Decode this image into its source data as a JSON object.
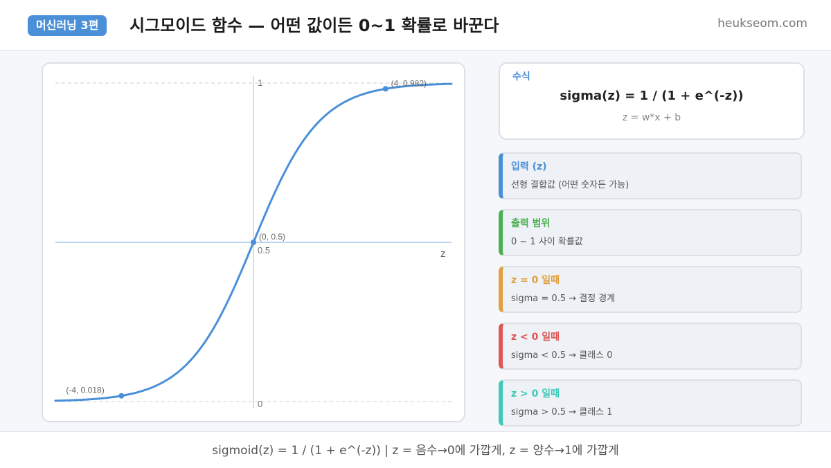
{
  "header": {
    "badge": "머신러닝 3편",
    "title": "시그모이드 함수 — 어떤 값이든 0~1 확률로 바꾼다",
    "site": "heukseom.com"
  },
  "chart_data": {
    "type": "line",
    "function": "sigmoid",
    "xlim": [
      -6,
      6
    ],
    "ylim": [
      0,
      1
    ],
    "xlabel": "z",
    "ytick_top": "1",
    "ytick_bottom": "0",
    "y_mid_label": "0.5",
    "points": [
      {
        "x": -4,
        "y": 0.018,
        "label": "(-4, 0.018)"
      },
      {
        "x": 0,
        "y": 0.5,
        "label": "(0, 0.5)"
      },
      {
        "x": 4,
        "y": 0.982,
        "label": "(4, 0.982)"
      }
    ],
    "colors": {
      "curve": "#4a90d9",
      "axis": "#bbbbbb",
      "dash": "#cccccc"
    }
  },
  "formula": {
    "label": "수식",
    "main": "sigma(z) = 1 / (1 + e^(-z))",
    "sub": "z = w*x + b"
  },
  "cards": [
    {
      "title": "입력 (z)",
      "desc": "선형 결합값 (어떤 숫자든 가능)",
      "color": "#4a90d9"
    },
    {
      "title": "출력 범위",
      "desc": "0 ~ 1 사이 확률값",
      "color": "#4caf50"
    },
    {
      "title": "z = 0 일때",
      "desc": "sigma = 0.5 → 결정 경계",
      "color": "#e0a040"
    },
    {
      "title": "z < 0 일때",
      "desc": "sigma < 0.5 → 클래스 0",
      "color": "#e05555"
    },
    {
      "title": "z > 0 일때",
      "desc": "sigma > 0.5 → 클래스 1",
      "color": "#3ec9b8"
    }
  ],
  "footer": "sigmoid(z) = 1 / (1 + e^(-z))  |  z = 음수→0에 가깝게, z = 양수→1에 가깝게"
}
